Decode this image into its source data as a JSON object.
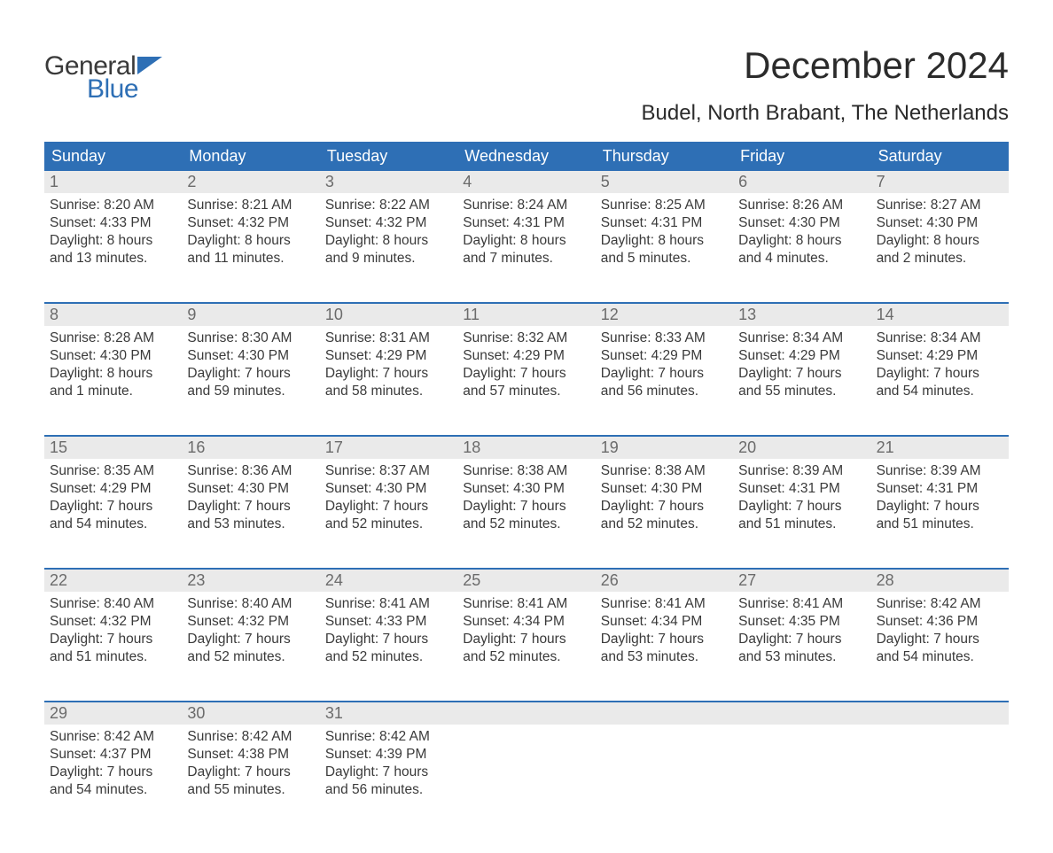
{
  "brand": {
    "top": "General",
    "bottom": "Blue"
  },
  "title": "December 2024",
  "location": "Budel, North Brabant, The Netherlands",
  "colors": {
    "header_bg": "#2e6fb5",
    "header_text": "#ffffff",
    "daynum_bg": "#eaeaea",
    "daynum_text": "#6b6b6b",
    "body_text": "#3a3a3a",
    "page_bg": "#ffffff",
    "week_sep": "#2e6fb5"
  },
  "weekdays": [
    "Sunday",
    "Monday",
    "Tuesday",
    "Wednesday",
    "Thursday",
    "Friday",
    "Saturday"
  ],
  "weeks": [
    [
      {
        "day": "1",
        "sunrise": "8:20 AM",
        "sunset": "4:33 PM",
        "dl1": "Daylight: 8 hours",
        "dl2": "and 13 minutes."
      },
      {
        "day": "2",
        "sunrise": "8:21 AM",
        "sunset": "4:32 PM",
        "dl1": "Daylight: 8 hours",
        "dl2": "and 11 minutes."
      },
      {
        "day": "3",
        "sunrise": "8:22 AM",
        "sunset": "4:32 PM",
        "dl1": "Daylight: 8 hours",
        "dl2": "and 9 minutes."
      },
      {
        "day": "4",
        "sunrise": "8:24 AM",
        "sunset": "4:31 PM",
        "dl1": "Daylight: 8 hours",
        "dl2": "and 7 minutes."
      },
      {
        "day": "5",
        "sunrise": "8:25 AM",
        "sunset": "4:31 PM",
        "dl1": "Daylight: 8 hours",
        "dl2": "and 5 minutes."
      },
      {
        "day": "6",
        "sunrise": "8:26 AM",
        "sunset": "4:30 PM",
        "dl1": "Daylight: 8 hours",
        "dl2": "and 4 minutes."
      },
      {
        "day": "7",
        "sunrise": "8:27 AM",
        "sunset": "4:30 PM",
        "dl1": "Daylight: 8 hours",
        "dl2": "and 2 minutes."
      }
    ],
    [
      {
        "day": "8",
        "sunrise": "8:28 AM",
        "sunset": "4:30 PM",
        "dl1": "Daylight: 8 hours",
        "dl2": "and 1 minute."
      },
      {
        "day": "9",
        "sunrise": "8:30 AM",
        "sunset": "4:30 PM",
        "dl1": "Daylight: 7 hours",
        "dl2": "and 59 minutes."
      },
      {
        "day": "10",
        "sunrise": "8:31 AM",
        "sunset": "4:29 PM",
        "dl1": "Daylight: 7 hours",
        "dl2": "and 58 minutes."
      },
      {
        "day": "11",
        "sunrise": "8:32 AM",
        "sunset": "4:29 PM",
        "dl1": "Daylight: 7 hours",
        "dl2": "and 57 minutes."
      },
      {
        "day": "12",
        "sunrise": "8:33 AM",
        "sunset": "4:29 PM",
        "dl1": "Daylight: 7 hours",
        "dl2": "and 56 minutes."
      },
      {
        "day": "13",
        "sunrise": "8:34 AM",
        "sunset": "4:29 PM",
        "dl1": "Daylight: 7 hours",
        "dl2": "and 55 minutes."
      },
      {
        "day": "14",
        "sunrise": "8:34 AM",
        "sunset": "4:29 PM",
        "dl1": "Daylight: 7 hours",
        "dl2": "and 54 minutes."
      }
    ],
    [
      {
        "day": "15",
        "sunrise": "8:35 AM",
        "sunset": "4:29 PM",
        "dl1": "Daylight: 7 hours",
        "dl2": "and 54 minutes."
      },
      {
        "day": "16",
        "sunrise": "8:36 AM",
        "sunset": "4:30 PM",
        "dl1": "Daylight: 7 hours",
        "dl2": "and 53 minutes."
      },
      {
        "day": "17",
        "sunrise": "8:37 AM",
        "sunset": "4:30 PM",
        "dl1": "Daylight: 7 hours",
        "dl2": "and 52 minutes."
      },
      {
        "day": "18",
        "sunrise": "8:38 AM",
        "sunset": "4:30 PM",
        "dl1": "Daylight: 7 hours",
        "dl2": "and 52 minutes."
      },
      {
        "day": "19",
        "sunrise": "8:38 AM",
        "sunset": "4:30 PM",
        "dl1": "Daylight: 7 hours",
        "dl2": "and 52 minutes."
      },
      {
        "day": "20",
        "sunrise": "8:39 AM",
        "sunset": "4:31 PM",
        "dl1": "Daylight: 7 hours",
        "dl2": "and 51 minutes."
      },
      {
        "day": "21",
        "sunrise": "8:39 AM",
        "sunset": "4:31 PM",
        "dl1": "Daylight: 7 hours",
        "dl2": "and 51 minutes."
      }
    ],
    [
      {
        "day": "22",
        "sunrise": "8:40 AM",
        "sunset": "4:32 PM",
        "dl1": "Daylight: 7 hours",
        "dl2": "and 51 minutes."
      },
      {
        "day": "23",
        "sunrise": "8:40 AM",
        "sunset": "4:32 PM",
        "dl1": "Daylight: 7 hours",
        "dl2": "and 52 minutes."
      },
      {
        "day": "24",
        "sunrise": "8:41 AM",
        "sunset": "4:33 PM",
        "dl1": "Daylight: 7 hours",
        "dl2": "and 52 minutes."
      },
      {
        "day": "25",
        "sunrise": "8:41 AM",
        "sunset": "4:34 PM",
        "dl1": "Daylight: 7 hours",
        "dl2": "and 52 minutes."
      },
      {
        "day": "26",
        "sunrise": "8:41 AM",
        "sunset": "4:34 PM",
        "dl1": "Daylight: 7 hours",
        "dl2": "and 53 minutes."
      },
      {
        "day": "27",
        "sunrise": "8:41 AM",
        "sunset": "4:35 PM",
        "dl1": "Daylight: 7 hours",
        "dl2": "and 53 minutes."
      },
      {
        "day": "28",
        "sunrise": "8:42 AM",
        "sunset": "4:36 PM",
        "dl1": "Daylight: 7 hours",
        "dl2": "and 54 minutes."
      }
    ],
    [
      {
        "day": "29",
        "sunrise": "8:42 AM",
        "sunset": "4:37 PM",
        "dl1": "Daylight: 7 hours",
        "dl2": "and 54 minutes."
      },
      {
        "day": "30",
        "sunrise": "8:42 AM",
        "sunset": "4:38 PM",
        "dl1": "Daylight: 7 hours",
        "dl2": "and 55 minutes."
      },
      {
        "day": "31",
        "sunrise": "8:42 AM",
        "sunset": "4:39 PM",
        "dl1": "Daylight: 7 hours",
        "dl2": "and 56 minutes."
      },
      null,
      null,
      null,
      null
    ]
  ],
  "labels": {
    "sunrise_prefix": "Sunrise: ",
    "sunset_prefix": "Sunset: "
  }
}
